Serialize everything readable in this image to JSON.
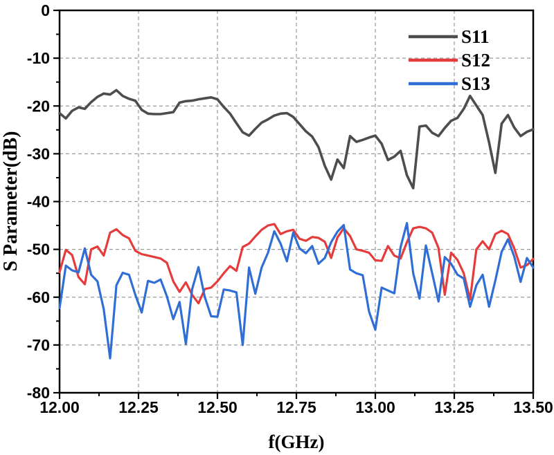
{
  "figure": {
    "kind": "scientific-line-plot",
    "background_color": "#ffffff",
    "frame_color": "#000000",
    "grid_color": "#9a9a9a",
    "grid_style": "dashed"
  },
  "axis_titles": {
    "x": "f(GHz)",
    "y": "S Parameter(dB)"
  },
  "chart_data": {
    "type": "line",
    "title": "",
    "xlabel": "f(GHz)",
    "ylabel": "S Parameter(dB)",
    "xlim": [
      12.0,
      13.5
    ],
    "ylim": [
      -80,
      0
    ],
    "grid": "dashed",
    "legend_position": "top-right",
    "x_ticks": [
      12.0,
      12.25,
      12.5,
      12.75,
      13.0,
      13.25,
      13.5
    ],
    "x_tick_labels": [
      "12.00",
      "12.25",
      "12.50",
      "12.75",
      "13.00",
      "13.25",
      "13.50"
    ],
    "x_minor_step": 0.125,
    "y_ticks": [
      0,
      -10,
      -20,
      -30,
      -40,
      -50,
      -60,
      -70,
      -80
    ],
    "y_tick_labels": [
      "0",
      "-10",
      "-20",
      "-30",
      "-40",
      "-50",
      "-60",
      "-70",
      "-80"
    ],
    "y_minor_step": 5,
    "x": [
      12.0,
      12.02,
      12.04,
      12.06,
      12.08,
      12.1,
      12.12,
      12.14,
      12.16,
      12.18,
      12.2,
      12.22,
      12.24,
      12.26,
      12.28,
      12.3,
      12.32,
      12.34,
      12.36,
      12.38,
      12.4,
      12.42,
      12.44,
      12.46,
      12.48,
      12.5,
      12.52,
      12.54,
      12.56,
      12.58,
      12.6,
      12.62,
      12.64,
      12.66,
      12.68,
      12.7,
      12.72,
      12.74,
      12.76,
      12.78,
      12.8,
      12.82,
      12.84,
      12.86,
      12.88,
      12.9,
      12.92,
      12.94,
      12.96,
      12.98,
      13.0,
      13.02,
      13.04,
      13.06,
      13.08,
      13.1,
      13.12,
      13.14,
      13.16,
      13.18,
      13.2,
      13.22,
      13.24,
      13.26,
      13.28,
      13.3,
      13.32,
      13.34,
      13.36,
      13.38,
      13.4,
      13.42,
      13.44,
      13.46,
      13.48,
      13.5
    ],
    "series": [
      {
        "name": "S11",
        "color": "#4d4d4d",
        "line_width": 3.6,
        "values": [
          -21.5,
          -22.6,
          -21.0,
          -20.3,
          -20.6,
          -19.2,
          -18.1,
          -17.4,
          -17.6,
          -16.7,
          -17.9,
          -18.5,
          -18.9,
          -20.8,
          -21.6,
          -21.7,
          -21.7,
          -21.5,
          -21.3,
          -19.3,
          -19.0,
          -18.9,
          -18.6,
          -18.4,
          -18.2,
          -18.6,
          -20.2,
          -21.6,
          -23.6,
          -25.5,
          -26.2,
          -24.8,
          -23.5,
          -22.8,
          -22.0,
          -21.6,
          -21.5,
          -22.3,
          -23.8,
          -25.3,
          -26.4,
          -28.6,
          -32.5,
          -35.4,
          -31.2,
          -33.0,
          -26.3,
          -27.5,
          -27.1,
          -26.6,
          -26.2,
          -27.9,
          -31.3,
          -30.6,
          -29.4,
          -34.5,
          -37.2,
          -24.3,
          -24.1,
          -25.6,
          -26.3,
          -24.6,
          -23.1,
          -22.5,
          -20.6,
          -17.9,
          -19.9,
          -21.9,
          -27.6,
          -34.0,
          -23.7,
          -21.9,
          -24.5,
          -26.3,
          -25.4,
          -24.9
        ]
      },
      {
        "name": "S12",
        "color": "#e63b3b",
        "line_width": 3.2,
        "values": [
          -54.8,
          -50.1,
          -51.2,
          -55.8,
          -57.3,
          -50.0,
          -49.4,
          -51.3,
          -46.5,
          -45.8,
          -47.0,
          -47.7,
          -50.3,
          -51.0,
          -51.3,
          -51.6,
          -51.9,
          -52.8,
          -56.7,
          -58.9,
          -56.9,
          -59.5,
          -61.3,
          -58.3,
          -58.0,
          -56.7,
          -55.0,
          -53.5,
          -54.5,
          -49.5,
          -48.8,
          -47.3,
          -45.9,
          -45.0,
          -44.7,
          -46.8,
          -46.2,
          -45.9,
          -47.8,
          -48.2,
          -47.4,
          -47.6,
          -48.4,
          -51.8,
          -47.5,
          -45.6,
          -47.2,
          -50.0,
          -50.3,
          -50.7,
          -52.3,
          -52.4,
          -49.3,
          -51.3,
          -51.9,
          -48.5,
          -45.6,
          -45.3,
          -45.6,
          -46.5,
          -49.7,
          -59.5,
          -50.7,
          -52.2,
          -55.0,
          -60.5,
          -50.0,
          -48.3,
          -50.0,
          -46.8,
          -46.1,
          -46.8,
          -49.8,
          -53.8,
          -53.3,
          -52.0
        ]
      },
      {
        "name": "S13",
        "color": "#2f6ed4",
        "line_width": 3.2,
        "values": [
          -62.3,
          -53.4,
          -54.4,
          -54.8,
          -49.8,
          -55.3,
          -56.7,
          -62.5,
          -72.8,
          -57.5,
          -54.9,
          -55.3,
          -59.5,
          -63.2,
          -56.6,
          -57.0,
          -56.3,
          -59.8,
          -64.6,
          -61.0,
          -69.8,
          -58.3,
          -53.7,
          -60.0,
          -64.0,
          -64.1,
          -58.4,
          -58.6,
          -59.0,
          -70.0,
          -53.8,
          -59.3,
          -53.8,
          -50.7,
          -46.2,
          -48.8,
          -52.5,
          -46.5,
          -49.8,
          -50.8,
          -49.3,
          -53.0,
          -51.8,
          -48.5,
          -46.3,
          -44.9,
          -54.2,
          -55.0,
          -55.4,
          -63.0,
          -66.8,
          -58.0,
          -58.6,
          -59.2,
          -49.5,
          -44.5,
          -55.0,
          -60.3,
          -49.2,
          -55.0,
          -60.9,
          -51.6,
          -53.0,
          -55.3,
          -56.1,
          -62.0,
          -57.5,
          -55.3,
          -62.0,
          -56.5,
          -50.5,
          -47.9,
          -51.5,
          -56.8,
          -51.8,
          -53.8
        ]
      }
    ]
  }
}
